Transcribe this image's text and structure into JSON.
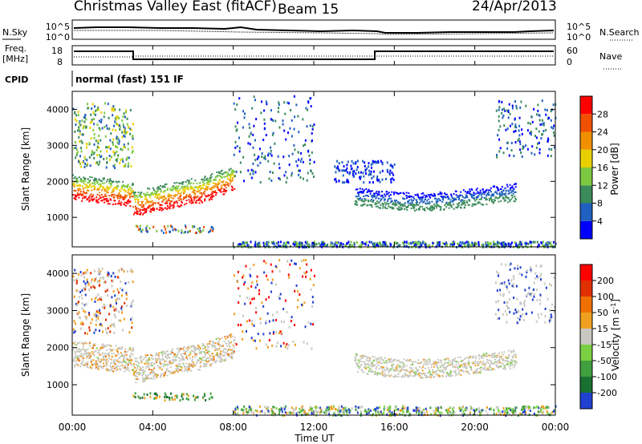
{
  "header": {
    "station": "Christmas Valley East (fitACF)",
    "beam": "Beam 15",
    "date": "24/Apr/2013"
  },
  "noise_panel": {
    "left_label": "N.Sky",
    "left_ticks": [
      "10^5",
      "10^0"
    ],
    "right_ticks": [
      "10^5",
      "10^0"
    ],
    "right_label": "N.Search"
  },
  "freq_panel": {
    "left_label_1": "Freq.",
    "left_label_2": "[MHz]",
    "left_ticks": [
      "18",
      "8"
    ],
    "right_ticks": [
      "60",
      "0"
    ],
    "right_label": "Nave"
  },
  "cpid": {
    "label": "CPID",
    "value": "normal (fast) 151 IF"
  },
  "chart_data": [
    {
      "type": "heatmap",
      "name": "power",
      "ylabel": "Slant Range [km]",
      "ylim": [
        180,
        4500
      ],
      "yticks": [
        "1000",
        "2000",
        "3000",
        "4000"
      ],
      "xlim": [
        0,
        24
      ],
      "colorbar_label": "Power [dB]",
      "colorbar_ticks": [
        "4",
        "8",
        "12",
        "16",
        "20",
        "24",
        "28"
      ],
      "colors": [
        "#0000ff",
        "#2060c0",
        "#3a8a5a",
        "#7cc840",
        "#e8d000",
        "#f09000",
        "#f05000",
        "#ff0000"
      ]
    },
    {
      "type": "heatmap",
      "name": "velocity",
      "ylabel": "Slant Range [km]",
      "ylim": [
        180,
        4500
      ],
      "yticks": [
        "1000",
        "2000",
        "3000",
        "4000"
      ],
      "xlim": [
        0,
        24
      ],
      "xlabel": "Time UT",
      "xticks": [
        "00:00",
        "04:00",
        "08:00",
        "12:00",
        "16:00",
        "20:00",
        "00:00"
      ],
      "colorbar_label": "Velocity [m s",
      "colorbar_label_sup": "-1",
      "colorbar_label_end": "]",
      "colorbar_ticks": [
        "200",
        "100",
        "50",
        "15",
        "-15",
        "-50",
        "-100",
        "-200"
      ],
      "colors": [
        "#2040d0",
        "#1a7030",
        "#40a040",
        "#7ad040",
        "#c8c8c0",
        "#f0a020",
        "#f07000",
        "#e03000",
        "#ff0000"
      ]
    }
  ]
}
